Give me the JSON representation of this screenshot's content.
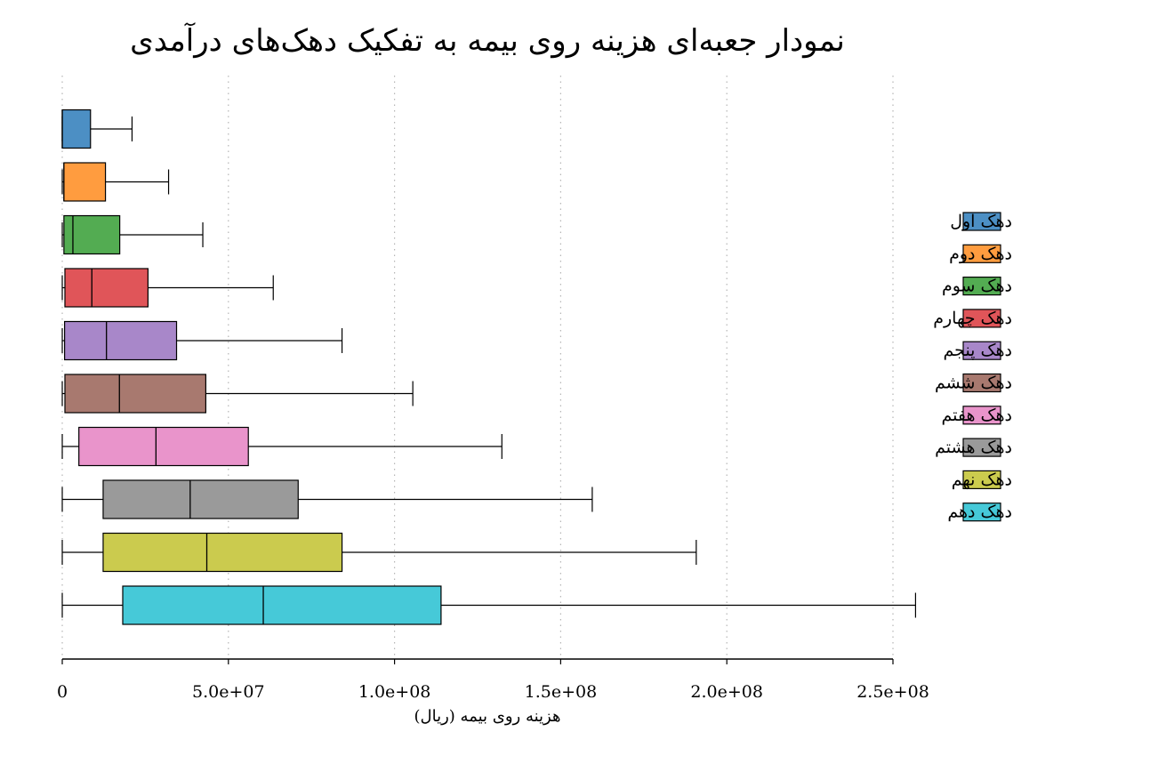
{
  "chart_data": {
    "type": "box",
    "orientation": "horizontal",
    "title": "نمودار جعبه‌ای هزینه روی بیمه به تفکیک دهک‌های درآمدی",
    "xlabel": "هزینه روی بیمه (ریال)",
    "ylabel": "",
    "xlim": [
      0,
      250000000
    ],
    "x_ticks": [
      0,
      50000000,
      100000000,
      150000000,
      200000000,
      250000000
    ],
    "x_tick_labels": [
      "0",
      "5.0e+07",
      "1.0e+08",
      "1.5e+08",
      "2.0e+08",
      "2.5e+08"
    ],
    "grid": "vertical dotted",
    "legend_position": "right",
    "series": [
      {
        "name": "دهک اول",
        "color": "#4c8fc4",
        "whisker_low": 0,
        "q1": 0,
        "median": 0,
        "q3": 8500000,
        "whisker_high": 21000000
      },
      {
        "name": "دهک دوم",
        "color": "#ff9c3f",
        "whisker_low": 0,
        "q1": 500000,
        "median": 500000,
        "q3": 13000000,
        "whisker_high": 32000000
      },
      {
        "name": "دهک سوم",
        "color": "#53ac52",
        "whisker_low": 0,
        "q1": 500000,
        "median": 3200000,
        "q3": 17300000,
        "whisker_high": 42300000
      },
      {
        "name": "دهک چهارم",
        "color": "#e05559",
        "whisker_low": 0,
        "q1": 800000,
        "median": 8900000,
        "q3": 25800000,
        "whisker_high": 63500000
      },
      {
        "name": "دهک پنجم",
        "color": "#a887c9",
        "whisker_low": 0,
        "q1": 700000,
        "median": 13300000,
        "q3": 34400000,
        "whisker_high": 84200000
      },
      {
        "name": "دهک ششم",
        "color": "#a8796f",
        "whisker_low": 0,
        "q1": 800000,
        "median": 17200000,
        "q3": 43200000,
        "whisker_high": 105500000
      },
      {
        "name": "دهک هفتم",
        "color": "#e994cb",
        "whisker_low": 0,
        "q1": 5000000,
        "median": 28200000,
        "q3": 56000000,
        "whisker_high": 132300000
      },
      {
        "name": "دهک هشتم",
        "color": "#9a9a9a",
        "whisker_low": 0,
        "q1": 12300000,
        "median": 38500000,
        "q3": 71000000,
        "whisker_high": 159500000
      },
      {
        "name": "دهک نهم",
        "color": "#cbcb4e",
        "whisker_low": 0,
        "q1": 12300000,
        "median": 43500000,
        "q3": 84200000,
        "whisker_high": 190800000
      },
      {
        "name": "دهک دهم",
        "color": "#46c9d8",
        "whisker_low": 0,
        "q1": 18200000,
        "median": 60500000,
        "q3": 114000000,
        "whisker_high": 256800000
      }
    ]
  }
}
